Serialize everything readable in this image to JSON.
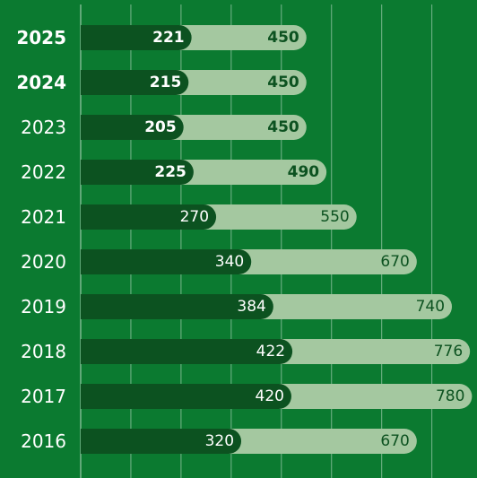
{
  "chart_data": {
    "type": "overlap-bar",
    "categories": [
      "2025",
      "2024",
      "2023",
      "2022",
      "2021",
      "2020",
      "2019",
      "2018",
      "2017",
      "2016"
    ],
    "series": [
      {
        "color": "#a4c8a0",
        "label_color": "#0c5220",
        "values": [
          450,
          450,
          450,
          490,
          550,
          670,
          740,
          776,
          780,
          670
        ]
      },
      {
        "color": "#0c5220",
        "label_color": "#ffffff",
        "values": [
          221,
          215,
          205,
          225,
          270,
          340,
          384,
          422,
          420,
          320
        ]
      }
    ],
    "bold_categories": [
      true,
      true,
      false,
      false,
      false,
      false,
      false,
      false,
      false,
      false
    ],
    "bold_values": [
      true,
      true,
      true,
      true,
      false,
      false,
      false,
      false,
      false,
      false
    ],
    "xlim": [
      0,
      790
    ],
    "xticks": [
      0,
      100,
      200,
      300,
      400,
      500,
      600,
      700
    ],
    "grid": true
  }
}
